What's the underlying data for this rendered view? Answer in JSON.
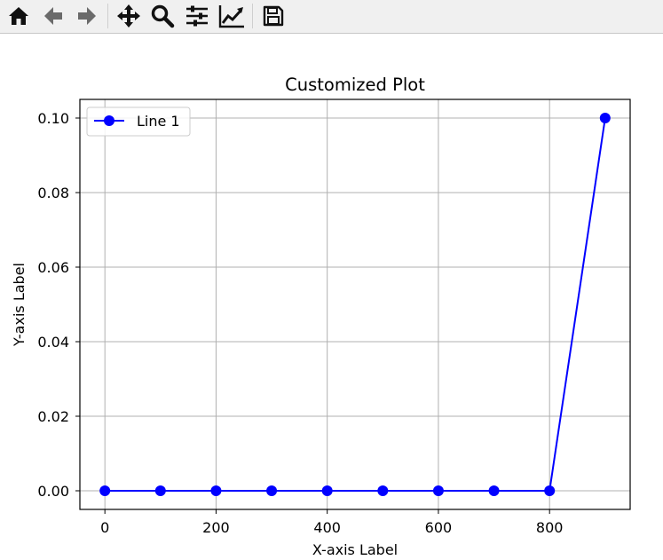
{
  "toolbar": {
    "buttons": [
      {
        "id": "home",
        "icon": "home-icon"
      },
      {
        "id": "back",
        "icon": "arrow-left-icon"
      },
      {
        "id": "forward",
        "icon": "arrow-right-icon"
      },
      {
        "id": "pan",
        "icon": "move-icon"
      },
      {
        "id": "zoom",
        "icon": "magnifier-icon"
      },
      {
        "id": "subplots",
        "icon": "sliders-icon"
      },
      {
        "id": "customize",
        "icon": "line-chart-icon"
      },
      {
        "id": "save",
        "icon": "floppy-disk-icon"
      }
    ]
  },
  "chart_data": {
    "type": "line",
    "title": "Customized Plot",
    "xlabel": "X-axis Label",
    "ylabel": "Y-axis Label",
    "xlim": [
      -45,
      945
    ],
    "ylim": [
      -0.005,
      0.105
    ],
    "xticks": [
      0,
      200,
      400,
      600,
      800
    ],
    "xtick_labels": [
      "0",
      "200",
      "400",
      "600",
      "800"
    ],
    "yticks": [
      0.0,
      0.02,
      0.04,
      0.06,
      0.08,
      0.1
    ],
    "ytick_labels": [
      "0.00",
      "0.02",
      "0.04",
      "0.06",
      "0.08",
      "0.10"
    ],
    "grid": true,
    "legend_position": "top-left",
    "series": [
      {
        "name": "Line 1",
        "color": "#0000ff",
        "marker": "circle",
        "x": [
          0,
          100,
          200,
          300,
          400,
          500,
          600,
          700,
          800,
          900
        ],
        "y": [
          0,
          0,
          0,
          0,
          0,
          0,
          0,
          0,
          0,
          0.1
        ]
      }
    ]
  }
}
